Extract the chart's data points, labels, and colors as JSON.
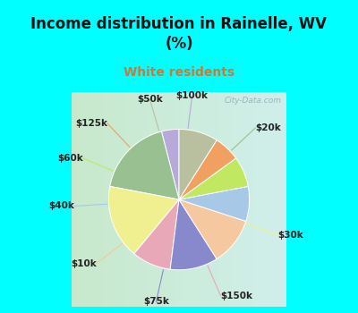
{
  "title": "Income distribution in Rainelle, WV\n(%)",
  "subtitle": "White residents",
  "title_color": "#111111",
  "subtitle_color": "#c87a3a",
  "background_color": "#00ffff",
  "watermark": "City-Data.com",
  "labels": [
    "$100k",
    "$20k",
    "$30k",
    "$150k",
    "$75k",
    "$10k",
    "$40k",
    "$60k",
    "$125k",
    "$50k"
  ],
  "values": [
    4,
    18,
    17,
    9,
    11,
    11,
    8,
    7,
    6,
    9
  ],
  "colors": [
    "#b8aad8",
    "#98c090",
    "#f0f090",
    "#e8a8b8",
    "#8888cc",
    "#f5c8a0",
    "#a8c8e8",
    "#c0e860",
    "#f0a060",
    "#b8c0a0"
  ],
  "start_angle": 90,
  "label_fontsize": 7.5,
  "title_fontsize": 12,
  "subtitle_fontsize": 10
}
